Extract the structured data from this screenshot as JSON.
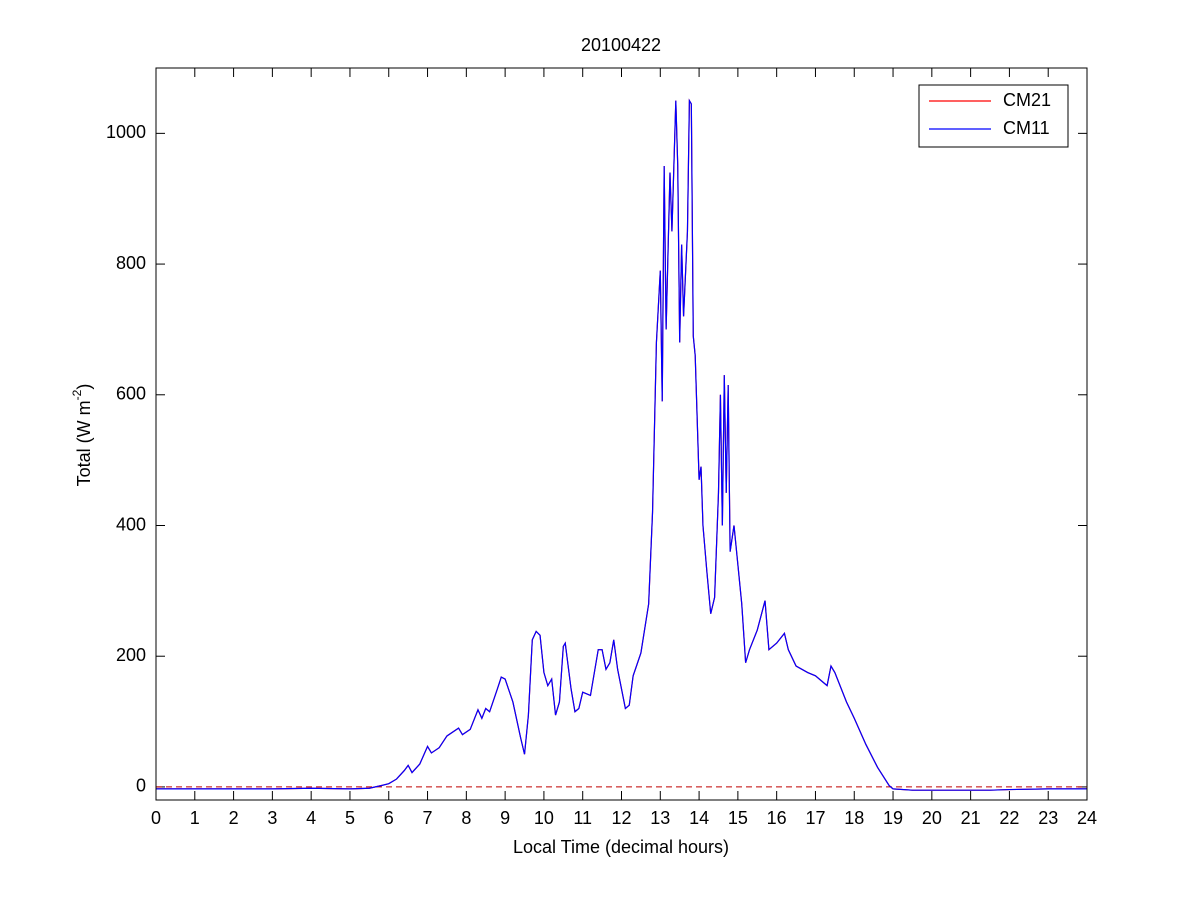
{
  "chart_data": {
    "type": "line",
    "title": "20100422",
    "xlabel": "Local Time (decimal hours)",
    "ylabel": [
      "Total (W m",
      "-2",
      ")"
    ],
    "xlim": [
      0,
      24
    ],
    "xticks": [
      0,
      1,
      2,
      3,
      4,
      5,
      6,
      7,
      8,
      9,
      10,
      11,
      12,
      13,
      14,
      15,
      16,
      17,
      18,
      19,
      20,
      21,
      22,
      23,
      24
    ],
    "ylim": [
      -20,
      1100
    ],
    "yticks": [
      0,
      200,
      400,
      600,
      800,
      1000
    ],
    "grid": false,
    "legend": "top-right",
    "hline": {
      "y": 0,
      "color": "#c00000",
      "style": "dashed"
    },
    "x": [
      0,
      1,
      2,
      3,
      4,
      5,
      5.5,
      5.8,
      6,
      6.2,
      6.4,
      6.5,
      6.6,
      6.8,
      7,
      7.1,
      7.3,
      7.5,
      7.8,
      7.9,
      8.1,
      8.3,
      8.4,
      8.5,
      8.6,
      8.8,
      8.9,
      9,
      9.2,
      9.4,
      9.5,
      9.6,
      9.7,
      9.8,
      9.9,
      10,
      10.1,
      10.2,
      10.3,
      10.4,
      10.5,
      10.55,
      10.7,
      10.8,
      10.9,
      11,
      11.2,
      11.4,
      11.5,
      11.6,
      11.7,
      11.8,
      11.9,
      12.1,
      12.2,
      12.3,
      12.5,
      12.7,
      12.8,
      12.9,
      13,
      13.05,
      13.1,
      13.15,
      13.2,
      13.25,
      13.3,
      13.4,
      13.45,
      13.5,
      13.55,
      13.6,
      13.7,
      13.75,
      13.8,
      13.85,
      13.9,
      14,
      14.05,
      14.1,
      14.2,
      14.3,
      14.4,
      14.5,
      14.55,
      14.6,
      14.65,
      14.7,
      14.75,
      14.8,
      14.9,
      15,
      15.1,
      15.2,
      15.3,
      15.5,
      15.7,
      15.8,
      16,
      16.2,
      16.3,
      16.5,
      16.8,
      17,
      17.2,
      17.3,
      17.4,
      17.5,
      17.8,
      18,
      18.3,
      18.6,
      18.9,
      19,
      19.5,
      20,
      21,
      21.5,
      22,
      23,
      24
    ],
    "series": [
      {
        "name": "CM21",
        "color": "#ff0000",
        "values": [
          -3,
          -3,
          -3,
          -3,
          -2,
          -3,
          -2,
          2,
          5,
          12,
          25,
          33,
          22,
          35,
          62,
          52,
          60,
          78,
          90,
          80,
          88,
          118,
          105,
          120,
          115,
          150,
          168,
          165,
          130,
          75,
          50,
          110,
          225,
          238,
          232,
          175,
          155,
          165,
          110,
          130,
          215,
          220,
          150,
          115,
          120,
          145,
          140,
          210,
          210,
          180,
          190,
          225,
          180,
          120,
          125,
          170,
          205,
          280,
          420,
          680,
          790,
          590,
          950,
          700,
          820,
          940,
          850,
          1050,
          950,
          680,
          830,
          720,
          850,
          1050,
          1045,
          690,
          660,
          470,
          490,
          400,
          330,
          265,
          290,
          450,
          600,
          400,
          630,
          450,
          615,
          360,
          400,
          340,
          280,
          190,
          210,
          240,
          285,
          210,
          220,
          235,
          210,
          185,
          175,
          170,
          160,
          155,
          185,
          175,
          130,
          105,
          65,
          30,
          2,
          -3,
          -5,
          -5,
          -5,
          -5,
          -4,
          -3,
          -3
        ]
      },
      {
        "name": "CM11",
        "color": "#0000ff",
        "values": [
          -3,
          -3,
          -3,
          -3,
          -2,
          -3,
          -2,
          2,
          5,
          12,
          25,
          33,
          22,
          35,
          62,
          52,
          60,
          78,
          90,
          80,
          88,
          118,
          105,
          120,
          115,
          150,
          168,
          165,
          130,
          75,
          50,
          110,
          225,
          238,
          232,
          175,
          155,
          165,
          110,
          130,
          215,
          220,
          150,
          115,
          120,
          145,
          140,
          210,
          210,
          180,
          190,
          225,
          180,
          120,
          125,
          170,
          205,
          280,
          420,
          680,
          790,
          590,
          950,
          700,
          820,
          940,
          850,
          1050,
          950,
          680,
          830,
          720,
          850,
          1050,
          1045,
          690,
          660,
          470,
          490,
          400,
          330,
          265,
          290,
          450,
          600,
          400,
          630,
          450,
          615,
          360,
          400,
          340,
          280,
          190,
          210,
          240,
          285,
          210,
          220,
          235,
          210,
          185,
          175,
          170,
          160,
          155,
          185,
          175,
          130,
          105,
          65,
          30,
          2,
          -3,
          -5,
          -5,
          -5,
          -5,
          -4,
          -3,
          -3
        ]
      }
    ]
  }
}
